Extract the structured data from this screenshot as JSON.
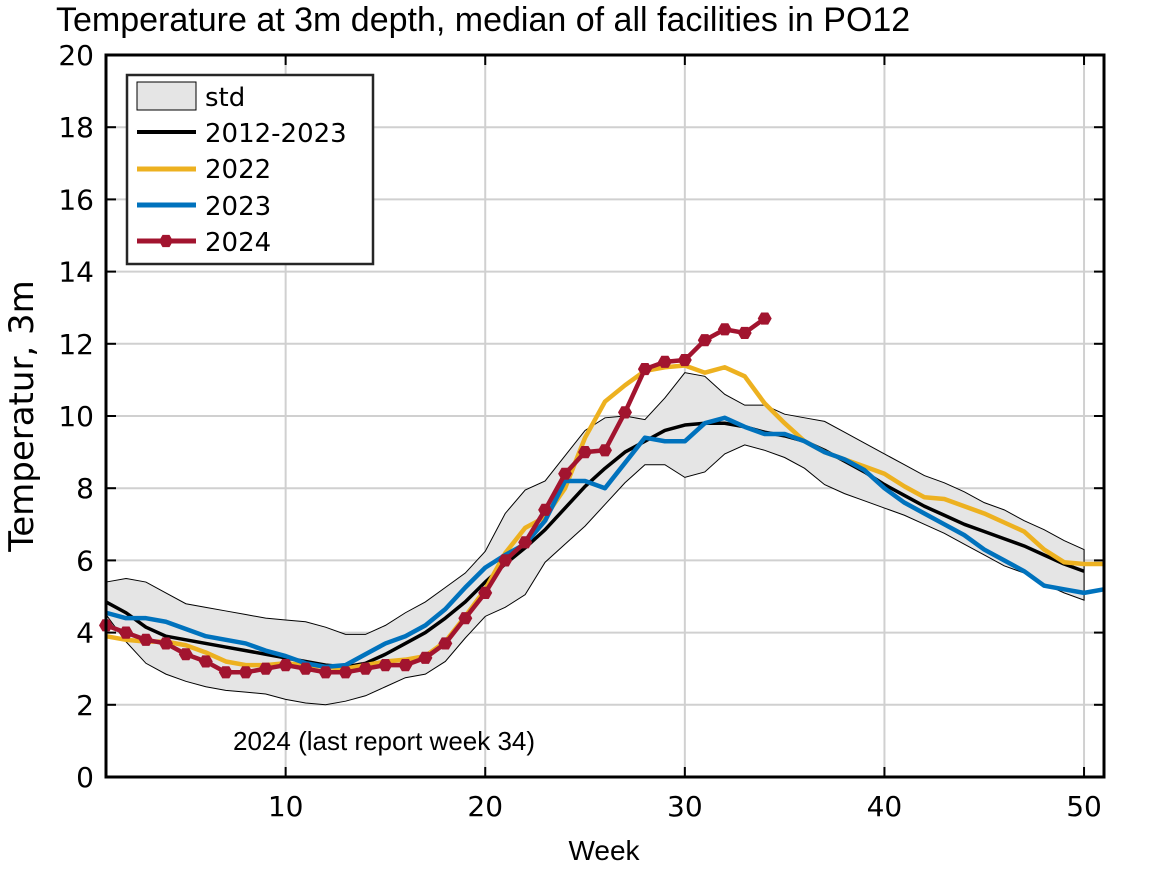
{
  "chart_data": {
    "type": "line",
    "title": "Temperature at 3m depth, median of all facilities in PO12",
    "xlabel": "Week",
    "ylabel": "Temperatur, 3m",
    "xlim": [
      1,
      51
    ],
    "ylim": [
      0,
      20
    ],
    "xticks": [
      10,
      20,
      30,
      40,
      50
    ],
    "yticks": [
      0,
      2,
      4,
      6,
      8,
      10,
      12,
      14,
      16,
      18,
      20
    ],
    "grid": true,
    "legend_position": "top-left",
    "annotation": "2024 (last report week 34)",
    "band": {
      "name": "std",
      "color": "#e5e5e5",
      "x": [
        1,
        2,
        3,
        4,
        5,
        6,
        7,
        8,
        9,
        10,
        11,
        12,
        13,
        14,
        15,
        16,
        17,
        18,
        19,
        20,
        21,
        22,
        23,
        24,
        25,
        26,
        27,
        28,
        29,
        30,
        31,
        32,
        33,
        34,
        35,
        36,
        37,
        38,
        39,
        40,
        41,
        42,
        43,
        44,
        45,
        46,
        47,
        48,
        49,
        50
      ],
      "upper": [
        5.4,
        5.5,
        5.4,
        5.1,
        4.8,
        4.7,
        4.6,
        4.5,
        4.4,
        4.35,
        4.3,
        4.15,
        3.95,
        3.95,
        4.2,
        4.55,
        4.85,
        5.25,
        5.65,
        6.25,
        7.3,
        7.95,
        8.2,
        8.9,
        9.6,
        9.95,
        10.0,
        9.9,
        10.5,
        11.2,
        11.1,
        10.6,
        10.3,
        10.3,
        10.05,
        9.95,
        9.85,
        9.55,
        9.25,
        8.95,
        8.65,
        8.35,
        8.15,
        7.9,
        7.6,
        7.4,
        7.1,
        6.85,
        6.55,
        6.3
      ],
      "lower": [
        4.5,
        3.75,
        3.15,
        2.85,
        2.65,
        2.5,
        2.4,
        2.35,
        2.3,
        2.15,
        2.05,
        2.0,
        2.1,
        2.25,
        2.5,
        2.75,
        2.85,
        3.2,
        3.85,
        4.45,
        4.7,
        5.05,
        5.95,
        6.45,
        6.95,
        7.55,
        8.15,
        8.65,
        8.65,
        8.3,
        8.45,
        8.95,
        9.2,
        9.05,
        8.85,
        8.55,
        8.1,
        7.85,
        7.65,
        7.45,
        7.25,
        7.0,
        6.75,
        6.45,
        6.15,
        5.85,
        5.65,
        5.35,
        5.1,
        4.9
      ]
    },
    "series": [
      {
        "name": "2012-2023",
        "color": "#000000",
        "x": [
          1,
          2,
          3,
          4,
          5,
          6,
          7,
          8,
          9,
          10,
          11,
          12,
          13,
          14,
          15,
          16,
          17,
          18,
          19,
          20,
          21,
          22,
          23,
          24,
          25,
          26,
          27,
          28,
          29,
          30,
          31,
          32,
          33,
          34,
          35,
          36,
          37,
          38,
          39,
          40,
          41,
          42,
          43,
          44,
          45,
          46,
          47,
          48,
          49,
          50
        ],
        "values": [
          4.85,
          4.55,
          4.15,
          3.9,
          3.8,
          3.7,
          3.6,
          3.5,
          3.4,
          3.3,
          3.2,
          3.1,
          3.05,
          3.15,
          3.4,
          3.7,
          4.0,
          4.4,
          4.85,
          5.4,
          5.9,
          6.35,
          6.85,
          7.45,
          8.05,
          8.55,
          9.0,
          9.3,
          9.6,
          9.75,
          9.8,
          9.8,
          9.7,
          9.55,
          9.45,
          9.3,
          9.05,
          8.75,
          8.45,
          8.1,
          7.8,
          7.5,
          7.25,
          7.0,
          6.8,
          6.6,
          6.4,
          6.15,
          5.9,
          5.7
        ]
      },
      {
        "name": "2022",
        "color": "#edb120",
        "x": [
          1,
          2,
          3,
          4,
          5,
          6,
          7,
          8,
          9,
          10,
          11,
          12,
          13,
          14,
          15,
          16,
          17,
          18,
          19,
          20,
          21,
          22,
          23,
          24,
          25,
          26,
          27,
          28,
          29,
          30,
          31,
          32,
          33,
          34,
          35,
          36,
          37,
          38,
          39,
          40,
          41,
          42,
          43,
          44,
          45,
          46,
          47,
          48,
          49,
          50,
          51
        ],
        "values": [
          3.9,
          3.8,
          3.75,
          3.75,
          3.65,
          3.45,
          3.2,
          3.1,
          3.1,
          3.15,
          3.1,
          3.05,
          3.0,
          3.1,
          3.2,
          3.25,
          3.35,
          3.75,
          4.45,
          5.2,
          6.2,
          6.9,
          7.2,
          8.0,
          9.4,
          10.4,
          10.85,
          11.25,
          11.35,
          11.4,
          11.2,
          11.35,
          11.1,
          10.35,
          9.8,
          9.3,
          9.0,
          8.8,
          8.6,
          8.4,
          8.05,
          7.75,
          7.7,
          7.5,
          7.3,
          7.05,
          6.8,
          6.3,
          5.95,
          5.9,
          5.9
        ]
      },
      {
        "name": "2023",
        "color": "#0072bd",
        "x": [
          1,
          2,
          3,
          4,
          5,
          6,
          7,
          8,
          9,
          10,
          11,
          12,
          13,
          14,
          15,
          16,
          17,
          18,
          19,
          20,
          21,
          22,
          23,
          24,
          25,
          26,
          27,
          28,
          29,
          30,
          31,
          32,
          33,
          34,
          35,
          36,
          37,
          38,
          39,
          40,
          41,
          42,
          43,
          44,
          45,
          46,
          47,
          48,
          49,
          50,
          51
        ],
        "values": [
          4.55,
          4.4,
          4.4,
          4.3,
          4.1,
          3.9,
          3.8,
          3.7,
          3.5,
          3.35,
          3.15,
          3.05,
          3.1,
          3.4,
          3.7,
          3.9,
          4.2,
          4.65,
          5.25,
          5.8,
          6.15,
          6.45,
          7.1,
          8.2,
          8.2,
          8.0,
          8.7,
          9.4,
          9.3,
          9.3,
          9.8,
          9.95,
          9.7,
          9.5,
          9.5,
          9.3,
          9.0,
          8.8,
          8.5,
          8.0,
          7.6,
          7.3,
          7.0,
          6.7,
          6.3,
          6.0,
          5.7,
          5.3,
          5.2,
          5.1,
          5.2
        ]
      },
      {
        "name": "2024",
        "color": "#a2142f",
        "markers": true,
        "x": [
          1,
          2,
          3,
          4,
          5,
          6,
          7,
          8,
          9,
          10,
          11,
          12,
          13,
          14,
          15,
          16,
          17,
          18,
          19,
          20,
          21,
          22,
          23,
          24,
          25,
          26,
          27,
          28,
          29,
          30,
          31,
          32,
          33,
          34
        ],
        "values": [
          4.2,
          4.0,
          3.8,
          3.7,
          3.4,
          3.2,
          2.9,
          2.9,
          3.0,
          3.1,
          3.0,
          2.9,
          2.9,
          3.0,
          3.1,
          3.1,
          3.3,
          3.7,
          4.4,
          5.1,
          6.0,
          6.5,
          7.4,
          8.4,
          9.0,
          9.05,
          10.1,
          11.3,
          11.5,
          11.55,
          12.1,
          12.4,
          12.3,
          12.7
        ]
      }
    ]
  }
}
